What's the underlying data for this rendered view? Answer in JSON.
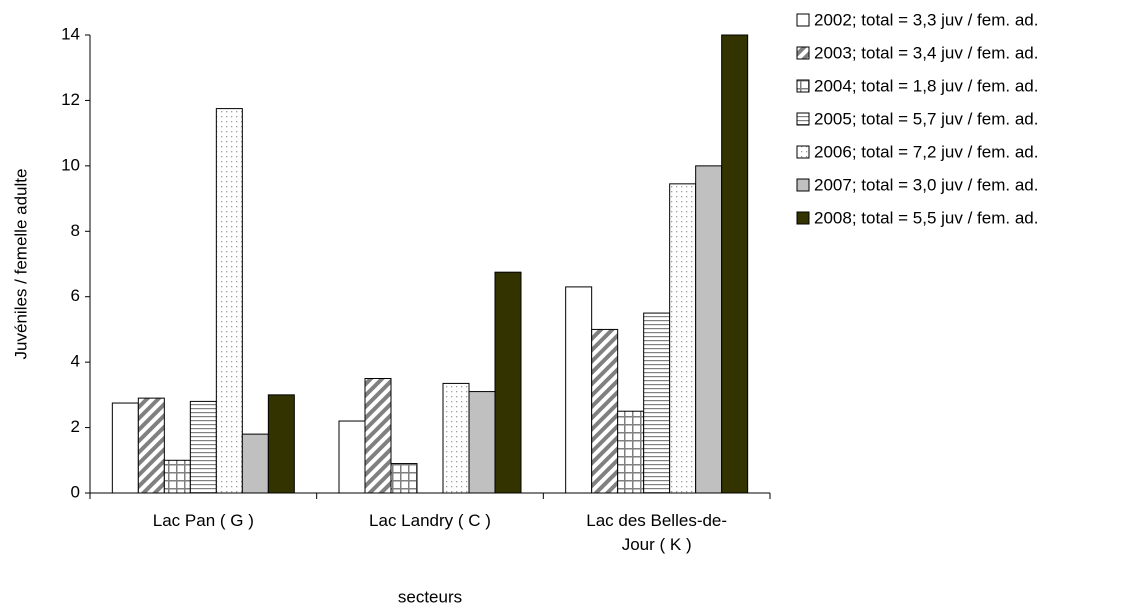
{
  "chart_data": {
    "type": "bar",
    "y_label": "Juvéniles / femelle adulte",
    "x_label": "secteurs",
    "categories": [
      "Lac Pan ( G )",
      "Lac Landry ( C )",
      "Lac des Belles-de-Jour ( K )"
    ],
    "ylim": [
      0,
      14
    ],
    "yticks": [
      0,
      2,
      4,
      6,
      8,
      10,
      12,
      14
    ],
    "series": [
      {
        "name": "2002; total = 3,3 juv / fem. ad.",
        "color": "#ffffff",
        "pattern": "none",
        "values": [
          2.75,
          2.2,
          6.3
        ]
      },
      {
        "name": "2003; total = 3,4 juv / fem. ad.",
        "color": "#808080",
        "pattern": "diagonal",
        "values": [
          2.9,
          3.5,
          5.0
        ]
      },
      {
        "name": "2004; total = 1,8 juv / fem. ad.",
        "color": "#808080",
        "pattern": "grid",
        "values": [
          1.0,
          0.9,
          2.5
        ]
      },
      {
        "name": "2005; total = 5,7 juv / fem. ad.",
        "color": "#808080",
        "pattern": "horizontal",
        "values": [
          2.8,
          null,
          5.5
        ]
      },
      {
        "name": "2006; total = 7,2 juv / fem. ad.",
        "color": "#a0a0a0",
        "pattern": "dotted",
        "values": [
          11.75,
          3.35,
          9.45
        ]
      },
      {
        "name": "2007; total = 3,0 juv / fem. ad.",
        "color": "#c0c0c0",
        "pattern": "none",
        "values": [
          1.8,
          3.1,
          10.0
        ]
      },
      {
        "name": "2008; total = 5,5 juv / fem. ad.",
        "color": "#333300",
        "pattern": "none",
        "values": [
          3.0,
          6.75,
          14.0
        ]
      }
    ]
  }
}
